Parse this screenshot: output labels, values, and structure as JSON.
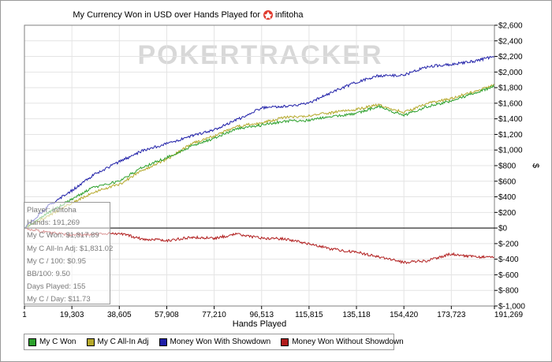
{
  "chart_data": {
    "type": "line",
    "title": "My Currency Won in USD over Hands Played for",
    "title_user": "infitoha",
    "icon": "pokerstars-icon",
    "watermark": "POKERTRACKER",
    "xlabel": "Hands Played",
    "ylabel": "$",
    "xlim": [
      1,
      191269
    ],
    "ylim": [
      -1000,
      2600
    ],
    "x_ticks": [
      1,
      19303,
      38605,
      57908,
      77210,
      96513,
      115815,
      135118,
      154420,
      173723,
      191269
    ],
    "x_tick_labels": [
      "1",
      "19,303",
      "38,605",
      "57,908",
      "77,210",
      "96,513",
      "115,815",
      "135,118",
      "154,420",
      "173,723",
      "191,269"
    ],
    "y_ticks": [
      -1000,
      -800,
      -600,
      -400,
      -200,
      0,
      200,
      400,
      600,
      800,
      1000,
      1200,
      1400,
      1600,
      1800,
      2000,
      2200,
      2400,
      2600
    ],
    "y_tick_labels": [
      "$-1,000",
      "$-800",
      "$-600",
      "$-400",
      "$-200",
      "$0",
      "$200",
      "$400",
      "$600",
      "$800",
      "$1,000",
      "$1,200",
      "$1,400",
      "$1,600",
      "$1,800",
      "$2,000",
      "$2,200",
      "$2,400",
      "$2,600"
    ],
    "grid": true,
    "legend_position": "bottom",
    "series": [
      {
        "name": "My C Won",
        "color": "#2ca02c",
        "points": [
          [
            1,
            0
          ],
          [
            10000,
            200
          ],
          [
            19303,
            370
          ],
          [
            28000,
            520
          ],
          [
            38605,
            600
          ],
          [
            48000,
            780
          ],
          [
            57908,
            900
          ],
          [
            68000,
            1050
          ],
          [
            77210,
            1150
          ],
          [
            86000,
            1270
          ],
          [
            96513,
            1320
          ],
          [
            106000,
            1370
          ],
          [
            115815,
            1380
          ],
          [
            125000,
            1430
          ],
          [
            135118,
            1470
          ],
          [
            144000,
            1560
          ],
          [
            154420,
            1440
          ],
          [
            164000,
            1560
          ],
          [
            173723,
            1630
          ],
          [
            183000,
            1730
          ],
          [
            191269,
            1817.89
          ]
        ]
      },
      {
        "name": "My C All-In Adj",
        "color": "#b5a82a",
        "points": [
          [
            1,
            0
          ],
          [
            10000,
            160
          ],
          [
            19303,
            320
          ],
          [
            28000,
            460
          ],
          [
            38605,
            560
          ],
          [
            48000,
            740
          ],
          [
            57908,
            880
          ],
          [
            68000,
            1080
          ],
          [
            77210,
            1180
          ],
          [
            86000,
            1300
          ],
          [
            96513,
            1350
          ],
          [
            106000,
            1420
          ],
          [
            115815,
            1440
          ],
          [
            125000,
            1480
          ],
          [
            135118,
            1520
          ],
          [
            144000,
            1580
          ],
          [
            154420,
            1480
          ],
          [
            164000,
            1600
          ],
          [
            173723,
            1660
          ],
          [
            183000,
            1750
          ],
          [
            191269,
            1831.02
          ]
        ]
      },
      {
        "name": "Money Won With Showdown",
        "color": "#1f1fa8",
        "points": [
          [
            1,
            0
          ],
          [
            10000,
            290
          ],
          [
            19303,
            480
          ],
          [
            28000,
            680
          ],
          [
            38605,
            850
          ],
          [
            48000,
            990
          ],
          [
            57908,
            1080
          ],
          [
            68000,
            1180
          ],
          [
            77210,
            1260
          ],
          [
            86000,
            1380
          ],
          [
            96513,
            1540
          ],
          [
            106000,
            1560
          ],
          [
            115815,
            1600
          ],
          [
            125000,
            1740
          ],
          [
            135118,
            1870
          ],
          [
            144000,
            1950
          ],
          [
            154420,
            1960
          ],
          [
            164000,
            2070
          ],
          [
            173723,
            2100
          ],
          [
            183000,
            2140
          ],
          [
            191269,
            2200
          ]
        ]
      },
      {
        "name": "Money Won Without Showdown",
        "color": "#b01c1c",
        "points": [
          [
            1,
            0
          ],
          [
            10000,
            -60
          ],
          [
            19303,
            -90
          ],
          [
            28000,
            -80
          ],
          [
            38605,
            -70
          ],
          [
            48000,
            -140
          ],
          [
            57908,
            -160
          ],
          [
            68000,
            -120
          ],
          [
            77210,
            -130
          ],
          [
            86000,
            -80
          ],
          [
            96513,
            -130
          ],
          [
            106000,
            -140
          ],
          [
            115815,
            -200
          ],
          [
            125000,
            -270
          ],
          [
            135118,
            -310
          ],
          [
            144000,
            -370
          ],
          [
            154420,
            -440
          ],
          [
            164000,
            -420
          ],
          [
            173723,
            -330
          ],
          [
            183000,
            -370
          ],
          [
            191269,
            -370
          ]
        ]
      }
    ]
  },
  "stats": [
    "Player: infitoha",
    "Hands: 191,269",
    "My C Won: $1,817.89",
    "My C All-In Adj: $1,831.02",
    "My C / 100: $0.95",
    "BB/100: 9.50",
    "Days Played: 155",
    "My C / Day: $11.73"
  ]
}
